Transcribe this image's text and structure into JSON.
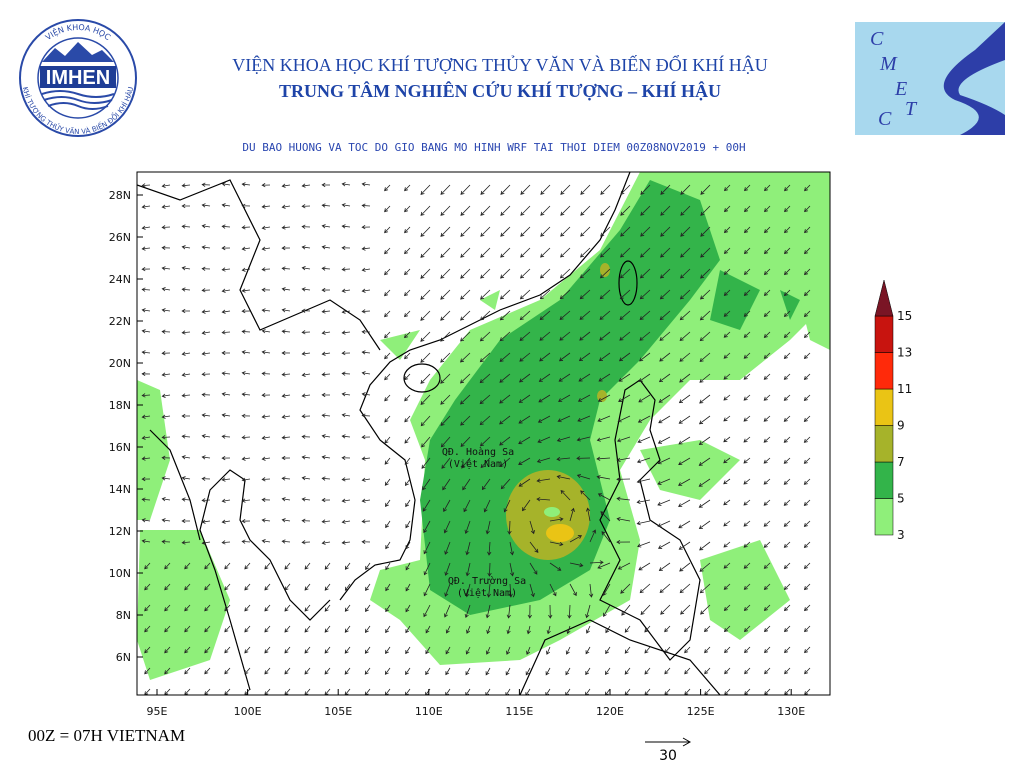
{
  "header": {
    "institute": "VIỆN KHOA HỌC KHÍ TƯỢNG THỦY VĂN VÀ BIẾN ĐỔI KHÍ HẬU",
    "center": "TRUNG TÂM NGHIÊN CỨU KHÍ TƯỢNG – KHÍ HẬU",
    "subtitle": "DU BAO HUONG VA TOC DO GIO BANG MO HINH WRF TAI THOI DIEM  00Z08NOV2019 + 00H"
  },
  "logo_left": {
    "text": "IMHEN",
    "ring_top": "VIỆN KHOA HỌC",
    "ring_bottom": "KHÍ TƯỢNG THỦY VĂN VÀ BIẾN ĐỔI KHÍ HẬU"
  },
  "logo_right": {
    "letters": [
      "C",
      "M",
      "E",
      "T",
      "C"
    ]
  },
  "map": {
    "lon_labels": [
      "95E",
      "100E",
      "105E",
      "110E",
      "115E",
      "120E",
      "125E",
      "130E"
    ],
    "lat_labels": [
      "28N",
      "26N",
      "24N",
      "22N",
      "20N",
      "18N",
      "16N",
      "14N",
      "12N",
      "10N",
      "8N",
      "6N"
    ],
    "places": [
      {
        "name": "QĐ. Hoàng Sa",
        "note": "(Việt Nam)"
      },
      {
        "name": "QĐ. Trường Sa",
        "note": "(Việt Nam)"
      }
    ]
  },
  "legend": {
    "levels": [
      3,
      5,
      7,
      9,
      11,
      13,
      15
    ],
    "colors": [
      "#8fef7a",
      "#33b44a",
      "#a6b32a",
      "#eac415",
      "#ff2a0a",
      "#c8140f",
      "#7a1525"
    ]
  },
  "footer": {
    "time_note": "00Z = 07H VIETNAM",
    "reference_vector": 30
  }
}
